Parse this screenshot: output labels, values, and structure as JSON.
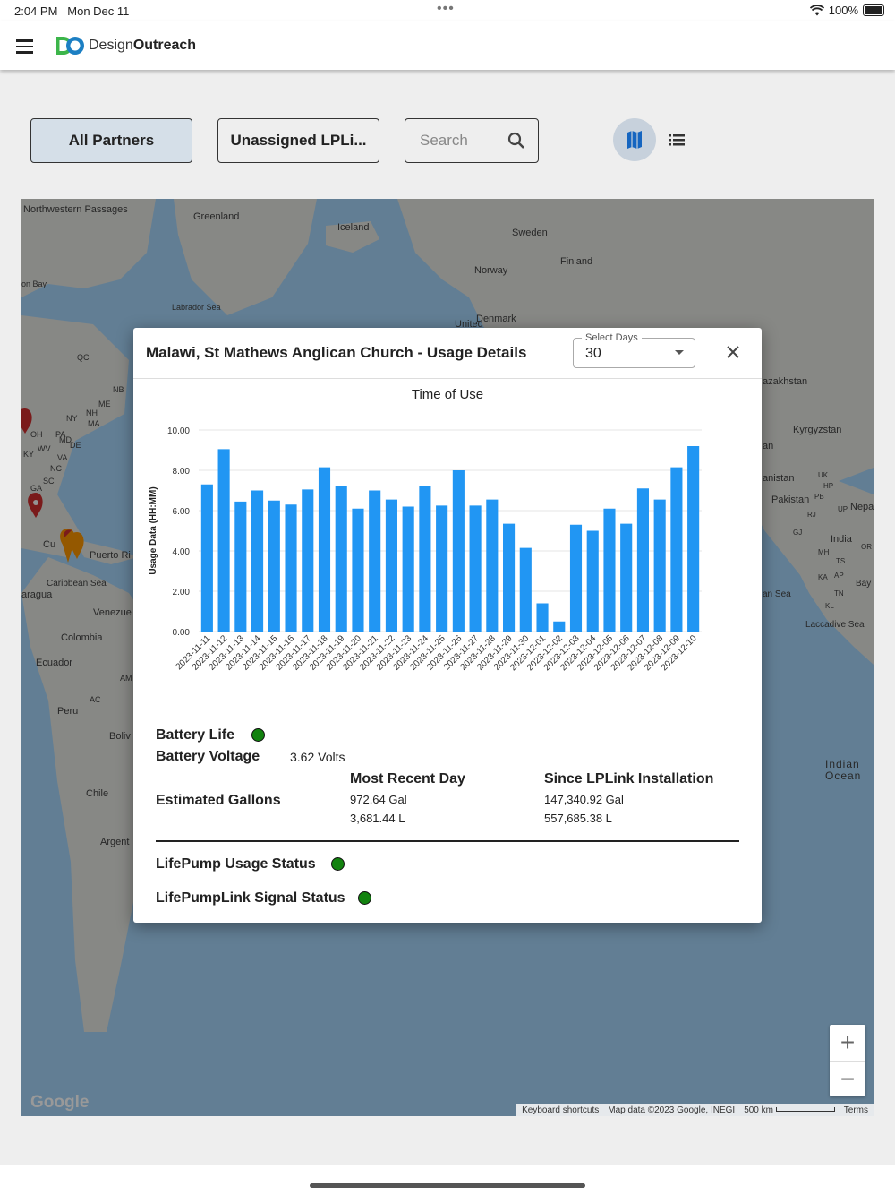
{
  "status_bar": {
    "time": "2:04 PM",
    "date": "Mon Dec 11",
    "battery": "100%"
  },
  "app": {
    "brand_regular": "Design",
    "brand_bold": "Outreach"
  },
  "filters": {
    "all_partners": "All Partners",
    "unassigned": "Unassigned LPLi...",
    "search_placeholder": "Search"
  },
  "map": {
    "labels": [
      "Northwestern Passages",
      "Greenland",
      "Iceland",
      "Sweden",
      "Finland",
      "Norway",
      "Labrador Sea",
      "Denmark",
      "United",
      "on Bay",
      "QC",
      "NB",
      "ME",
      "NY",
      "NH",
      "MA",
      "OH",
      "PA",
      "KY",
      "WV",
      "VA",
      "MD",
      "DE",
      "NC",
      "SC",
      "GA",
      "Cu",
      "Puerto Ri",
      "Caribbean Sea",
      "aragua",
      "Venezue",
      "Colombia",
      "Ecuador",
      "AM",
      "Peru",
      "AC",
      "Boliv",
      "Chile",
      "Argent",
      "azakhstan",
      "Kyrgyzstan",
      "an",
      "anistan",
      "Pakistan",
      "UK",
      "HP",
      "PB",
      "UP",
      "Nepa",
      "RJ",
      "GJ",
      "India",
      "MH",
      "TS",
      "OR",
      "KA",
      "AP",
      "Bay",
      "TN",
      "KL",
      "an Sea",
      "Laccadive Sea",
      "Indian",
      "Ocean"
    ],
    "attribution": {
      "shortcuts": "Keyboard shortcuts",
      "data": "Map data ©2023 Google, INEGI",
      "scale": "500 km",
      "terms": "Terms"
    },
    "google": "Google",
    "zoom_in": "+",
    "zoom_out": "−"
  },
  "modal": {
    "title": "Malawi, St Mathews Anglican Church - Usage Details",
    "select_label": "Select Days",
    "select_value": "30",
    "battery_life_label": "Battery Life",
    "battery_voltage_label": "Battery Voltage",
    "battery_voltage_value": "3.62 Volts",
    "estimated_gallons_label": "Estimated Gallons",
    "most_recent_header": "Most Recent Day",
    "since_install_header": "Since LPLink Installation",
    "most_recent_gal": "972.64 Gal",
    "most_recent_l": "3,681.44 L",
    "since_install_gal": "147,340.92 Gal",
    "since_install_l": "557,685.38 L",
    "usage_status_label": "LifePump Usage Status",
    "signal_status_label": "LifePumpLink Signal Status",
    "status_color": "#12820f"
  },
  "chart_data": {
    "type": "bar",
    "title": "Time of Use",
    "xlabel": "",
    "ylabel": "Usage Data (HH:MM)",
    "ylim": [
      0,
      10
    ],
    "yticks": [
      "0.00",
      "2.00",
      "4.00",
      "6.00",
      "8.00",
      "10.00"
    ],
    "color": "#2196f3",
    "categories": [
      "2023-11-11",
      "2023-11-12",
      "2023-11-13",
      "2023-11-14",
      "2023-11-15",
      "2023-11-16",
      "2023-11-17",
      "2023-11-18",
      "2023-11-19",
      "2023-11-20",
      "2023-11-21",
      "2023-11-22",
      "2023-11-23",
      "2023-11-24",
      "2023-11-25",
      "2023-11-26",
      "2023-11-27",
      "2023-11-28",
      "2023-11-29",
      "2023-11-30",
      "2023-12-01",
      "2023-12-02",
      "2023-12-03",
      "2023-12-04",
      "2023-12-05",
      "2023-12-06",
      "2023-12-07",
      "2023-12-08",
      "2023-12-09",
      "2023-12-10"
    ],
    "values": [
      7.3,
      9.05,
      6.45,
      7.0,
      6.5,
      6.3,
      7.05,
      8.15,
      7.2,
      6.1,
      7.0,
      6.55,
      6.2,
      7.2,
      6.25,
      8.0,
      6.25,
      6.55,
      5.35,
      4.15,
      1.4,
      0.5,
      5.3,
      5.0,
      6.1,
      5.35,
      7.1,
      6.55,
      8.15,
      9.2
    ]
  }
}
